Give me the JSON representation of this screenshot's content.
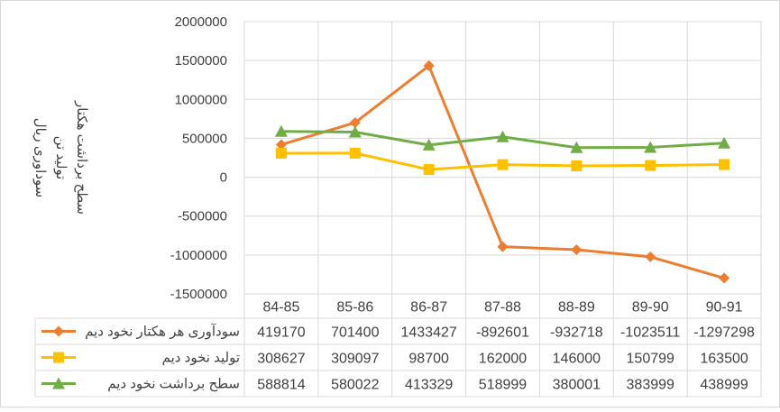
{
  "chart_data": {
    "type": "line",
    "categories": [
      "84-85",
      "85-86",
      "86-87",
      "87-88",
      "88-89",
      "89-90",
      "90-91"
    ],
    "ylim": [
      -1500000,
      2000000
    ],
    "yticks": [
      "2000000",
      "1500000",
      "1000000",
      "500000",
      "0",
      "-500000",
      "-1000000",
      "-1500000"
    ],
    "ylabel_lines": [
      "سوداوری ریال",
      "تولید تن",
      "سطح برداشت هکتار"
    ],
    "grid": true,
    "legend": "data-table",
    "series": [
      {
        "name": "سودآوری هر هکتار نخود دیم",
        "color": "#ED7D31",
        "marker": "diamond",
        "values": [
          419170,
          701400,
          1433427,
          -892601,
          -932718,
          -1023511,
          -1297298
        ],
        "labels": [
          "419170",
          "701400",
          "1433427",
          "-892601",
          "-932718",
          "-1023511",
          "-1297298"
        ]
      },
      {
        "name": "تولید نخود دیم",
        "color": "#FFC000",
        "marker": "square",
        "values": [
          308627,
          309097,
          98700,
          162000,
          146000,
          150799,
          163500
        ],
        "labels": [
          "308627",
          "309097",
          "98700",
          "162000",
          "146000",
          "150799",
          "163500"
        ]
      },
      {
        "name": "سطح برداشت نخود دیم",
        "color": "#70AD47",
        "marker": "triangle",
        "values": [
          588814,
          580022,
          413329,
          518999,
          380001,
          383999,
          438999
        ],
        "labels": [
          "588814",
          "580022",
          "413329",
          "518999",
          "380001",
          "383999",
          "438999"
        ]
      }
    ]
  }
}
